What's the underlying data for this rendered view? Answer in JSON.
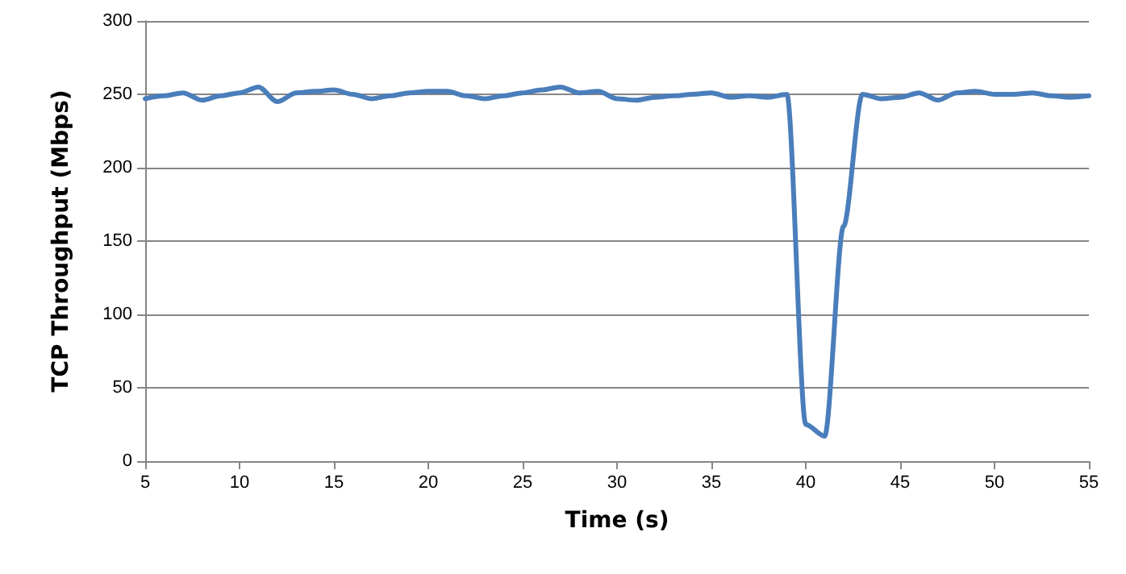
{
  "chart_data": {
    "type": "line",
    "xlabel": "Time (s)",
    "ylabel": "TCP Throughput (Mbps)",
    "x": [
      5,
      6,
      7,
      8,
      9,
      10,
      11,
      12,
      13,
      14,
      15,
      16,
      17,
      18,
      19,
      20,
      21,
      22,
      23,
      24,
      25,
      26,
      27,
      28,
      29,
      30,
      31,
      32,
      33,
      34,
      35,
      36,
      37,
      38,
      39,
      40,
      41,
      42,
      43,
      44,
      45,
      46,
      47,
      48,
      49,
      50,
      51,
      52,
      53,
      54,
      55
    ],
    "series": [
      {
        "color": "#4a7ebb",
        "values": [
          247,
          249,
          251,
          246,
          249,
          251,
          255,
          245,
          251,
          252,
          253,
          250,
          247,
          249,
          251,
          252,
          252,
          249,
          247,
          249,
          251,
          253,
          255,
          251,
          252,
          247,
          246,
          248,
          249,
          250,
          251,
          248,
          249,
          248,
          250,
          25,
          17,
          160,
          250,
          247,
          248,
          251,
          246,
          251,
          252,
          250,
          250,
          251,
          249,
          248,
          249
        ]
      }
    ],
    "xlim": [
      5,
      55
    ],
    "xticks": [
      5,
      10,
      15,
      20,
      25,
      30,
      35,
      40,
      45,
      50,
      55
    ],
    "ylim": [
      0,
      300
    ],
    "yticks": [
      0,
      50,
      100,
      150,
      200,
      250,
      300
    ],
    "grid": "y",
    "marker": "none",
    "line_style": "solid"
  }
}
